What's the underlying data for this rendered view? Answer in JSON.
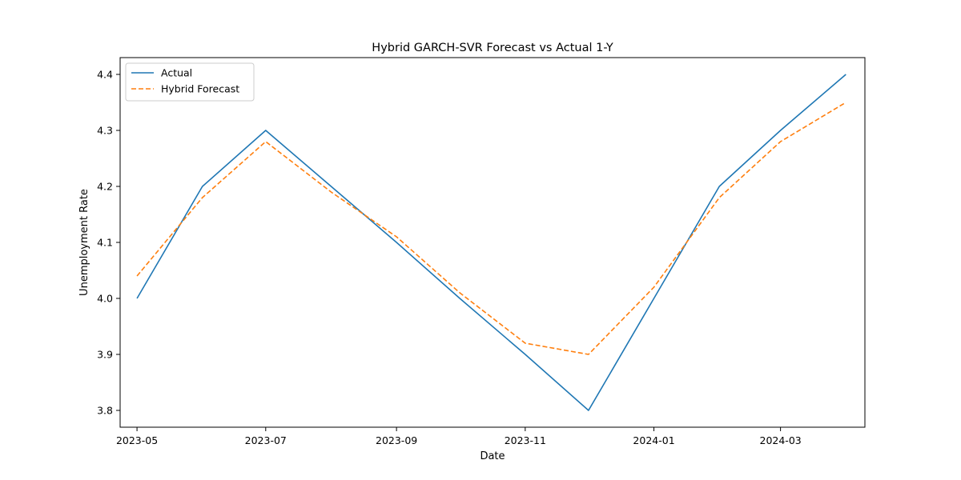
{
  "chart_data": {
    "type": "line",
    "title": "Hybrid GARCH-SVR Forecast vs Actual 1-Y",
    "xlabel": "Date",
    "ylabel": "Unemployment Rate",
    "x": [
      "2023-05",
      "2023-06",
      "2023-07",
      "2023-08",
      "2023-09",
      "2023-10",
      "2023-11",
      "2023-12",
      "2024-01",
      "2024-02",
      "2024-03",
      "2024-04"
    ],
    "series": [
      {
        "name": "Actual",
        "color": "#1f77b4",
        "style": "solid",
        "values": [
          4.0,
          4.2,
          4.3,
          4.2,
          4.1,
          4.0,
          3.9,
          3.8,
          4.0,
          4.2,
          4.3,
          4.4
        ]
      },
      {
        "name": "Hybrid Forecast",
        "color": "#ff7f0e",
        "style": "dashed",
        "values": [
          4.04,
          4.18,
          4.28,
          4.19,
          4.11,
          4.01,
          3.92,
          3.9,
          4.02,
          4.18,
          4.28,
          4.35
        ]
      }
    ],
    "xticks": [
      "2023-05",
      "2023-07",
      "2023-09",
      "2023-11",
      "2024-01",
      "2024-03"
    ],
    "yticks": [
      3.8,
      3.9,
      4.0,
      4.1,
      4.2,
      4.3,
      4.4
    ],
    "ylim": [
      3.77,
      4.43
    ],
    "xlim": [
      "2023-04-23",
      "2024-04-10"
    ],
    "grid": false,
    "legend_position": "upper left"
  }
}
